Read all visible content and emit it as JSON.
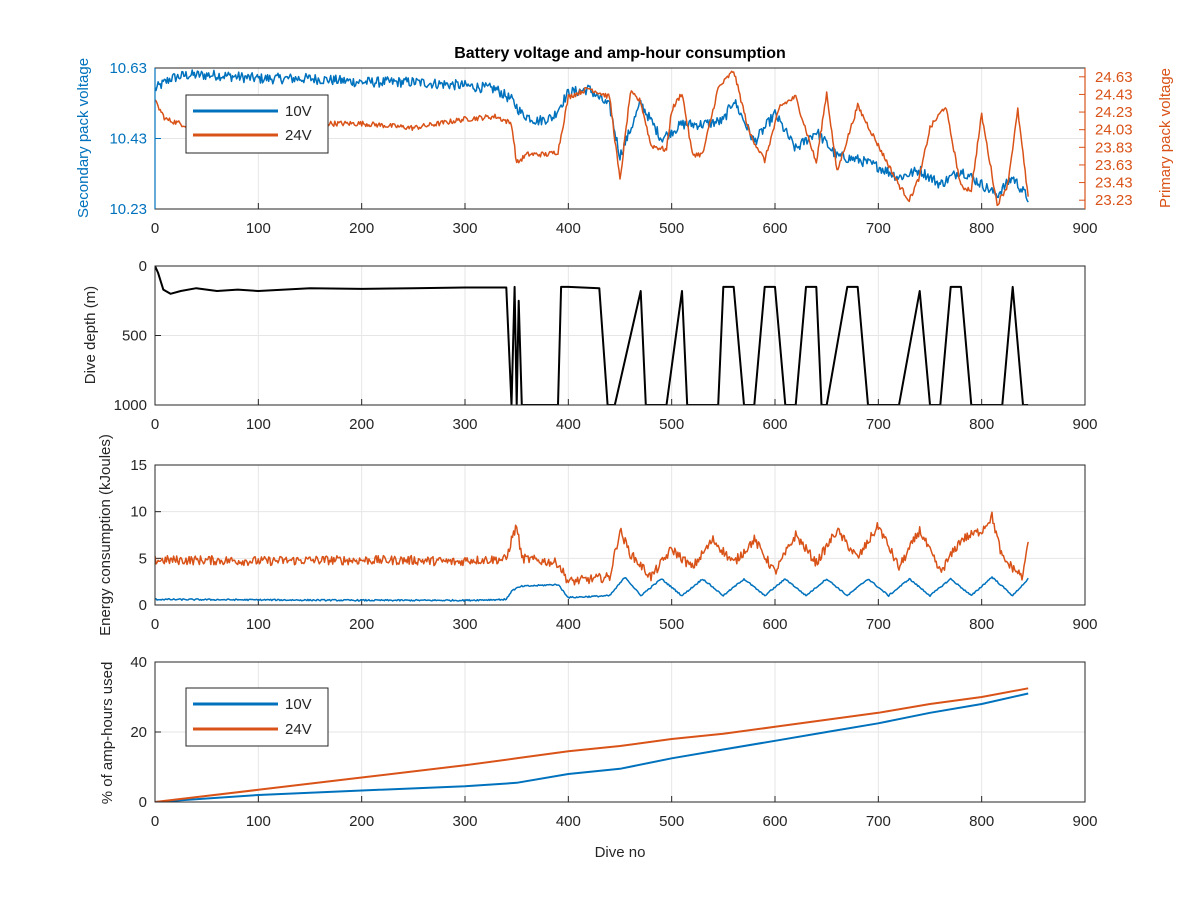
{
  "colors": {
    "blue": "#0072BD",
    "orange": "#D95319",
    "black": "#000000",
    "axis_left_blue": "#0072BD",
    "axis_right_orange": "#D95319",
    "grid": "#e6e6e6"
  },
  "chart_data": [
    {
      "type": "line",
      "title": "Battery voltage and amp-hour consumption",
      "xlabel": "",
      "xlim": [
        0,
        900
      ],
      "xticks": [
        0,
        100,
        200,
        300,
        400,
        500,
        600,
        700,
        800,
        900
      ],
      "ylabel_left": "Secondary pack voltage",
      "ylim_left": [
        10.23,
        10.63
      ],
      "yticks_left": [
        "10.23",
        "10.43",
        "10.63"
      ],
      "ylabel_right": "Primary pack voltage",
      "ylim_right": [
        23.13,
        24.73
      ],
      "yticks_right": [
        "23.23",
        "23.43",
        "23.63",
        "23.83",
        "24.03",
        "24.23",
        "24.43",
        "24.63"
      ],
      "grid": true,
      "legend": "top-left",
      "series": [
        {
          "name": "10V",
          "axis": "left",
          "x": [
            0,
            15,
            30,
            60,
            100,
            150,
            200,
            250,
            300,
            330,
            345,
            355,
            370,
            385,
            400,
            420,
            440,
            450,
            470,
            490,
            510,
            530,
            550,
            560,
            580,
            600,
            620,
            640,
            660,
            680,
            700,
            720,
            740,
            760,
            780,
            800,
            815,
            830,
            845
          ],
          "y": [
            10.57,
            10.6,
            10.61,
            10.61,
            10.6,
            10.6,
            10.59,
            10.59,
            10.58,
            10.57,
            10.54,
            10.5,
            10.48,
            10.49,
            10.56,
            10.57,
            10.52,
            10.38,
            10.53,
            10.43,
            10.47,
            10.47,
            10.48,
            10.54,
            10.42,
            10.5,
            10.4,
            10.45,
            10.38,
            10.37,
            10.35,
            10.32,
            10.34,
            10.3,
            10.34,
            10.3,
            10.27,
            10.32,
            10.26
          ],
          "noise": 0.015
        },
        {
          "name": "24V",
          "axis": "right",
          "x": [
            0,
            10,
            30,
            60,
            100,
            150,
            200,
            250,
            300,
            330,
            345,
            350,
            360,
            380,
            390,
            400,
            420,
            440,
            450,
            460,
            470,
            480,
            495,
            500,
            510,
            520,
            530,
            545,
            560,
            575,
            590,
            605,
            620,
            640,
            650,
            660,
            680,
            700,
            720,
            730,
            740,
            750,
            765,
            780,
            790,
            800,
            815,
            825,
            835,
            845
          ],
          "y": [
            24.35,
            24.15,
            24.08,
            24.05,
            24.08,
            24.1,
            24.1,
            24.05,
            24.15,
            24.18,
            24.1,
            23.65,
            23.75,
            23.75,
            23.78,
            24.4,
            24.5,
            24.4,
            23.45,
            24.45,
            24.35,
            23.85,
            23.8,
            24.25,
            24.45,
            23.75,
            23.75,
            24.5,
            24.7,
            24.0,
            23.68,
            24.3,
            24.4,
            23.65,
            24.45,
            23.55,
            24.3,
            23.85,
            23.4,
            23.23,
            23.5,
            24.05,
            24.3,
            23.38,
            23.35,
            24.2,
            23.18,
            23.4,
            24.25,
            23.25
          ],
          "noise": 0.03
        }
      ]
    },
    {
      "type": "line",
      "title": "",
      "xlabel": "",
      "xlim": [
        0,
        900
      ],
      "xticks": [
        0,
        100,
        200,
        300,
        400,
        500,
        600,
        700,
        800,
        900
      ],
      "ylabel": "Dive depth (m)",
      "ylim": [
        0,
        1000
      ],
      "y_reversed": true,
      "yticks": [
        "0",
        "500",
        "1000"
      ],
      "grid": true,
      "series": [
        {
          "name": "",
          "x": [
            0,
            3,
            8,
            15,
            25,
            40,
            60,
            80,
            100,
            150,
            200,
            250,
            300,
            340,
            345,
            348,
            350,
            352,
            355,
            360,
            390,
            393,
            400,
            430,
            438,
            445,
            470,
            475,
            480,
            485,
            490,
            495,
            510,
            515,
            520,
            525,
            545,
            550,
            560,
            570,
            580,
            590,
            600,
            610,
            620,
            630,
            640,
            645,
            650,
            670,
            680,
            690,
            700,
            720,
            740,
            750,
            760,
            770,
            780,
            790,
            800,
            810,
            820,
            830,
            840,
            845
          ],
          "y": [
            0,
            50,
            170,
            200,
            180,
            160,
            180,
            170,
            180,
            160,
            165,
            160,
            155,
            155,
            1000,
            150,
            1000,
            250,
            1000,
            1000,
            1000,
            150,
            150,
            160,
            1000,
            1000,
            180,
            1000,
            1000,
            1000,
            1000,
            1000,
            180,
            1000,
            1000,
            1000,
            1000,
            150,
            150,
            1000,
            1000,
            150,
            150,
            1000,
            1000,
            150,
            150,
            1000,
            1000,
            150,
            150,
            1000,
            1000,
            1000,
            180,
            1000,
            1000,
            150,
            150,
            1000,
            1000,
            1000,
            1000,
            150,
            1000,
            1000
          ]
        }
      ]
    },
    {
      "type": "line",
      "title": "",
      "xlabel": "",
      "xlim": [
        0,
        900
      ],
      "xticks": [
        0,
        100,
        200,
        300,
        400,
        500,
        600,
        700,
        800,
        900
      ],
      "ylabel": "Energy consumption (kJoules)",
      "ylim": [
        0,
        15
      ],
      "yticks": [
        "0",
        "5",
        "10",
        "15"
      ],
      "grid": true,
      "series": [
        {
          "name": "",
          "color": "orange",
          "x": [
            0,
            50,
            100,
            150,
            200,
            250,
            295,
            300,
            340,
            345,
            350,
            355,
            390,
            400,
            440,
            450,
            460,
            480,
            500,
            520,
            540,
            560,
            580,
            600,
            620,
            640,
            660,
            680,
            700,
            720,
            740,
            760,
            780,
            800,
            810,
            820,
            840,
            845
          ],
          "y": [
            4.8,
            4.8,
            4.7,
            4.8,
            4.8,
            4.8,
            4.6,
            4.8,
            4.9,
            7.0,
            8.5,
            5.0,
            4.5,
            2.5,
            3.0,
            8.0,
            5.5,
            3.0,
            6.0,
            4.0,
            7.0,
            4.5,
            7.0,
            3.5,
            7.5,
            4.5,
            8.0,
            5.0,
            8.5,
            4.0,
            8.0,
            3.5,
            7.0,
            8.0,
            9.5,
            5.0,
            3.0,
            7.0
          ],
          "noise": 0.5
        },
        {
          "name": "",
          "color": "blue",
          "x": [
            0,
            100,
            200,
            300,
            340,
            345,
            350,
            355,
            390,
            400,
            440,
            455,
            470,
            490,
            510,
            530,
            550,
            570,
            590,
            610,
            630,
            650,
            670,
            690,
            710,
            730,
            750,
            770,
            790,
            810,
            830,
            845
          ],
          "y": [
            0.6,
            0.55,
            0.5,
            0.5,
            0.6,
            1.5,
            1.8,
            2.0,
            2.2,
            0.8,
            1.0,
            3.0,
            1.0,
            2.8,
            1.0,
            2.8,
            1.0,
            2.8,
            1.0,
            2.8,
            1.0,
            2.8,
            1.0,
            2.8,
            1.0,
            2.8,
            1.0,
            2.8,
            1.0,
            3.0,
            1.0,
            2.8
          ],
          "noise": 0.08
        }
      ]
    },
    {
      "type": "line",
      "title": "",
      "xlabel": "Dive no",
      "xlim": [
        0,
        900
      ],
      "xticks": [
        0,
        100,
        200,
        300,
        400,
        500,
        600,
        700,
        800,
        900
      ],
      "ylabel": "% of amp-hours used",
      "ylim": [
        0,
        40
      ],
      "yticks": [
        "0",
        "20",
        "40"
      ],
      "grid": true,
      "legend": "top-left",
      "series": [
        {
          "name": "10V",
          "color": "blue",
          "x": [
            0,
            100,
            200,
            300,
            350,
            400,
            450,
            500,
            550,
            600,
            650,
            700,
            750,
            800,
            845
          ],
          "y": [
            0,
            2.0,
            3.3,
            4.5,
            5.5,
            8.0,
            9.5,
            12.5,
            15.0,
            17.5,
            20.0,
            22.5,
            25.5,
            28.0,
            31.0
          ]
        },
        {
          "name": "24V",
          "color": "orange",
          "x": [
            0,
            100,
            200,
            300,
            350,
            400,
            450,
            500,
            550,
            600,
            650,
            700,
            750,
            800,
            845
          ],
          "y": [
            0,
            3.5,
            7.0,
            10.5,
            12.5,
            14.5,
            16.0,
            18.0,
            19.5,
            21.5,
            23.5,
            25.5,
            28.0,
            30.0,
            32.5
          ]
        }
      ]
    }
  ]
}
